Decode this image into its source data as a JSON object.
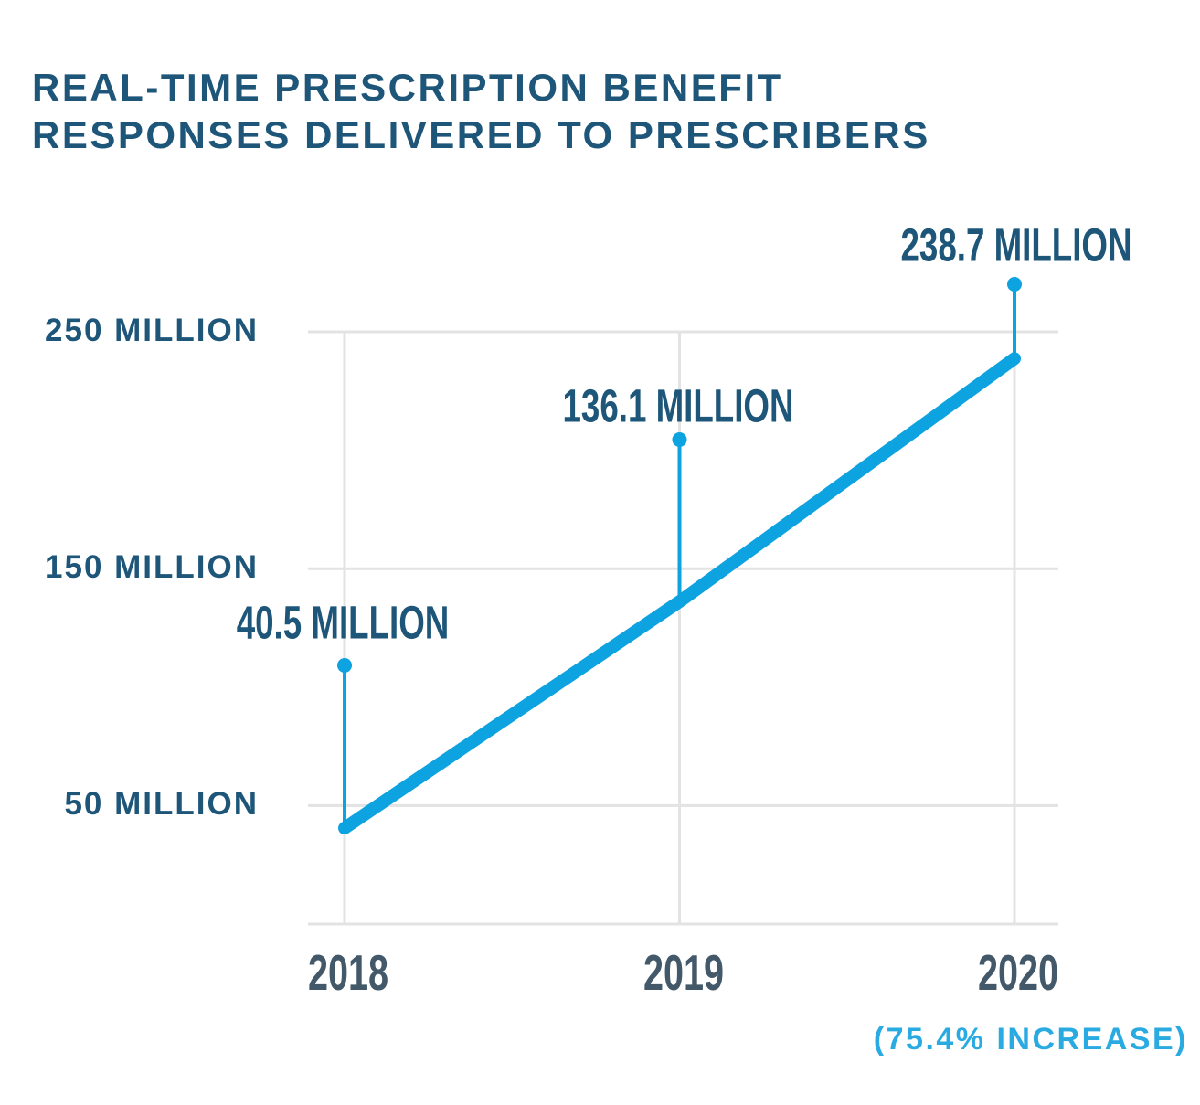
{
  "title": {
    "line1": "REAL-TIME PRESCRIPTION BENEFIT",
    "line2": "RESPONSES DELIVERED TO PRESCRIBERS"
  },
  "chart_data": {
    "type": "line",
    "x": [
      "2018",
      "2019",
      "2020"
    ],
    "series": [
      {
        "name": "Real-time prescription benefit responses delivered to prescribers (millions)",
        "values": [
          40.5,
          136.1,
          238.7
        ]
      }
    ],
    "point_labels": [
      "40.5 MILLION",
      "136.1 MILLION",
      "238.7 MILLION"
    ],
    "y_ticks": [
      {
        "value": 250,
        "label": "250 MILLION"
      },
      {
        "value": 150,
        "label": "150 MILLION"
      },
      {
        "value": 50,
        "label": "50 MILLION"
      }
    ],
    "ylim": [
      0,
      250
    ],
    "grid": true,
    "legend": "none",
    "annotation": "(75.4% INCREASE)",
    "colors": {
      "line": "#0da2e0",
      "marker": "#0da2e0",
      "annotation": "#29abe2",
      "label_teal": "#1d5679",
      "year_slate": "#43596a",
      "title_teal": "#1e567a",
      "grid": "#e3e3e3"
    }
  }
}
